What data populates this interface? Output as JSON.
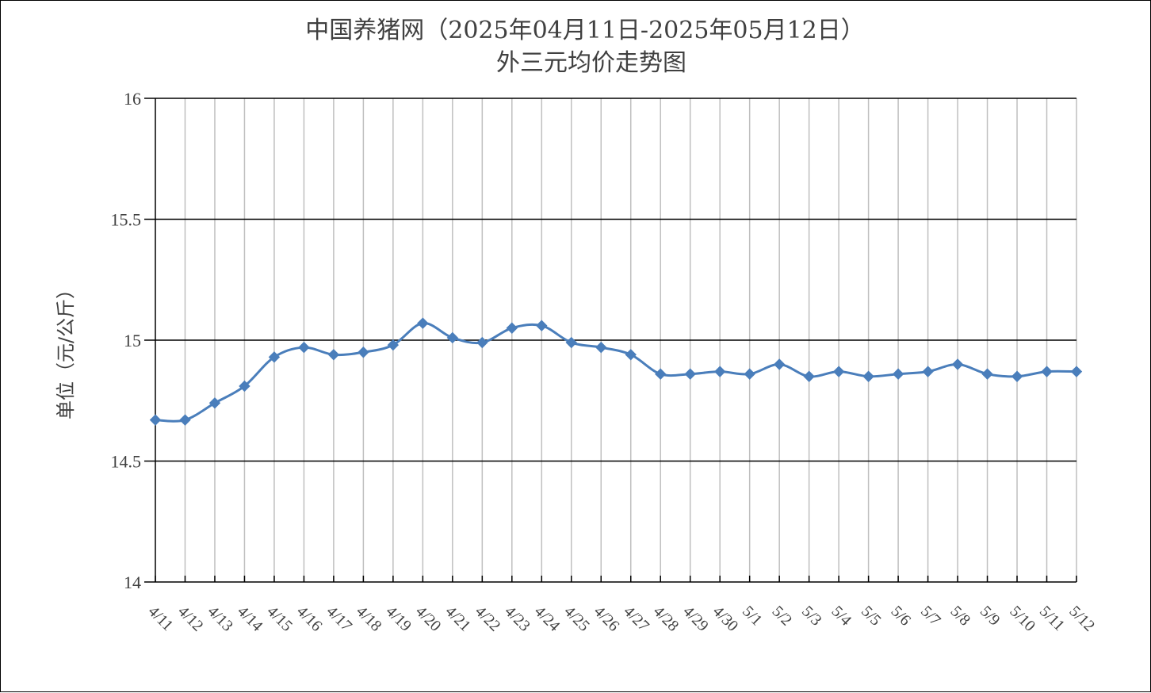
{
  "chart_data": {
    "type": "line",
    "title": "中国养猪网（2025年04月11日-2025年05月12日）",
    "subtitle": "外三元均价走势图",
    "xlabel": "",
    "ylabel": "单位（元/公斤）",
    "ylim": [
      14,
      16
    ],
    "yticks": [
      "14",
      "14.5",
      "15",
      "15.5",
      "16"
    ],
    "grid": "on",
    "categories": [
      "4/11",
      "4/12",
      "4/13",
      "4/14",
      "4/15",
      "4/16",
      "4/17",
      "4/18",
      "4/19",
      "4/20",
      "4/21",
      "4/22",
      "4/23",
      "4/24",
      "4/25",
      "4/26",
      "4/27",
      "4/28",
      "4/29",
      "4/30",
      "5/1",
      "5/2",
      "5/3",
      "5/4",
      "5/5",
      "5/6",
      "5/7",
      "5/8",
      "5/9",
      "5/10",
      "5/11",
      "5/12"
    ],
    "series": [
      {
        "color": "#4A7EBB",
        "marker": "diamond",
        "smooth": true,
        "values": [
          14.67,
          14.67,
          14.74,
          14.81,
          14.93,
          14.97,
          14.94,
          14.95,
          14.98,
          15.07,
          15.01,
          14.99,
          15.05,
          15.06,
          14.99,
          14.97,
          14.94,
          14.86,
          14.86,
          14.87,
          14.86,
          14.9,
          14.85,
          14.87,
          14.85,
          14.86,
          14.87,
          14.9,
          14.86,
          14.85,
          14.87,
          14.87
        ]
      }
    ]
  }
}
